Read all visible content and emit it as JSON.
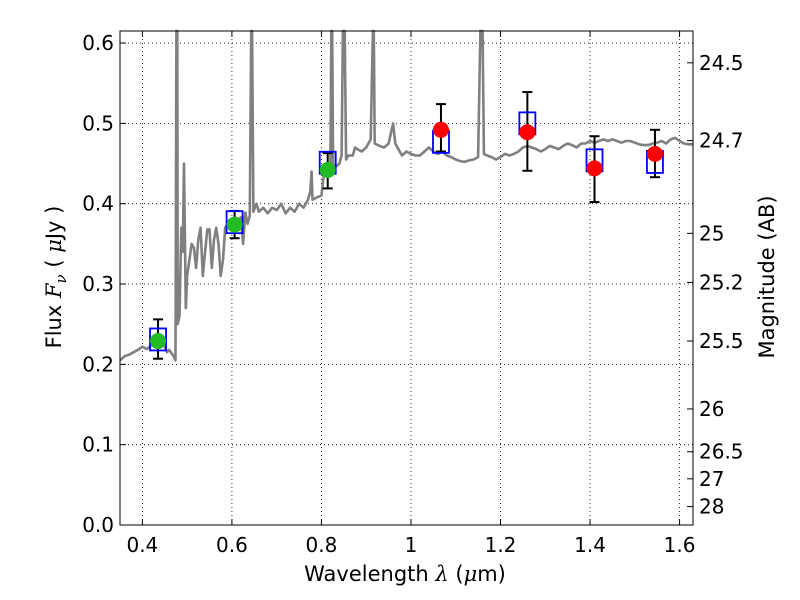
{
  "chart_data": {
    "type": "scatter",
    "xlabel": "Wavelength  λ (μm)",
    "ylabel": "Flux  Fν  ( μJy )",
    "y2label": "Magnitude (AB)",
    "xlim": [
      0.35,
      1.63
    ],
    "ylim": [
      0.0,
      0.615
    ],
    "grid": true,
    "x_ticks": [
      0.4,
      0.6,
      0.8,
      1.0,
      1.2,
      1.4,
      1.6
    ],
    "x_tick_labels": [
      "0.4",
      "0.6",
      "0.8",
      "1",
      "1.2",
      "1.4",
      "1.6"
    ],
    "y_ticks": [
      0.0,
      0.1,
      0.2,
      0.3,
      0.4,
      0.5,
      0.6
    ],
    "y_tick_labels": [
      "0.0",
      "0.1",
      "0.2",
      "0.3",
      "0.4",
      "0.5",
      "0.6"
    ],
    "y2_ticks": [
      {
        "label": "24.5",
        "flux": 0.5754
      },
      {
        "label": "24.7",
        "flux": 0.4786
      },
      {
        "label": "25",
        "flux": 0.3631
      },
      {
        "label": "25.2",
        "flux": 0.302
      },
      {
        "label": "25.5",
        "flux": 0.2291
      },
      {
        "label": "26",
        "flux": 0.1445
      },
      {
        "label": "26.5",
        "flux": 0.0912
      },
      {
        "label": "27",
        "flux": 0.0575
      },
      {
        "label": "28",
        "flux": 0.0229
      }
    ],
    "series": [
      {
        "name": "",
        "kind": "observed-optical",
        "color": "#22bb22",
        "points": [
          {
            "x": 0.435,
            "y": 0.229,
            "err": [
              0.207,
              0.256
            ]
          },
          {
            "x": 0.606,
            "y": 0.374,
            "err": [
              0.357,
              0.391
            ]
          },
          {
            "x": 0.814,
            "y": 0.442,
            "err": [
              0.419,
              0.463
            ]
          }
        ]
      },
      {
        "name": "",
        "kind": "observed-near-infrared",
        "color": "#ff0000",
        "points": [
          {
            "x": 1.067,
            "y": 0.492,
            "err": [
              0.465,
              0.524
            ]
          },
          {
            "x": 1.26,
            "y": 0.489,
            "err": [
              0.441,
              0.539
            ]
          },
          {
            "x": 1.41,
            "y": 0.444,
            "err": [
              0.402,
              0.484
            ]
          },
          {
            "x": 1.545,
            "y": 0.462,
            "err": [
              0.433,
              0.492
            ]
          }
        ]
      },
      {
        "name": "",
        "kind": "model-photometry",
        "color": "#0000ff",
        "points": [
          {
            "x": 0.435,
            "y": 0.231
          },
          {
            "x": 0.606,
            "y": 0.377
          },
          {
            "x": 0.814,
            "y": 0.451
          },
          {
            "x": 1.067,
            "y": 0.477
          },
          {
            "x": 1.26,
            "y": 0.5
          },
          {
            "x": 1.41,
            "y": 0.454
          },
          {
            "x": 1.545,
            "y": 0.452
          }
        ]
      },
      {
        "name": "",
        "kind": "model-spectrum",
        "color": "#808080",
        "points": [
          [
            0.35,
            0.205
          ],
          [
            0.36,
            0.21
          ],
          [
            0.37,
            0.212
          ],
          [
            0.38,
            0.215
          ],
          [
            0.39,
            0.218
          ],
          [
            0.4,
            0.222
          ],
          [
            0.41,
            0.219
          ],
          [
            0.42,
            0.224
          ],
          [
            0.43,
            0.222
          ],
          [
            0.44,
            0.226
          ],
          [
            0.45,
            0.222
          ],
          [
            0.455,
            0.215
          ],
          [
            0.46,
            0.218
          ],
          [
            0.465,
            0.214
          ],
          [
            0.47,
            0.21
          ],
          [
            0.474,
            0.205
          ],
          [
            0.476,
            0.62
          ],
          [
            0.478,
            0.62
          ],
          [
            0.479,
            0.25
          ],
          [
            0.483,
            0.26
          ],
          [
            0.487,
            0.37
          ],
          [
            0.49,
            0.34
          ],
          [
            0.493,
            0.45
          ],
          [
            0.497,
            0.27
          ],
          [
            0.5,
            0.31
          ],
          [
            0.505,
            0.33
          ],
          [
            0.51,
            0.35
          ],
          [
            0.515,
            0.345
          ],
          [
            0.52,
            0.32
          ],
          [
            0.525,
            0.355
          ],
          [
            0.53,
            0.37
          ],
          [
            0.535,
            0.31
          ],
          [
            0.54,
            0.34
          ],
          [
            0.545,
            0.368
          ],
          [
            0.55,
            0.368
          ],
          [
            0.555,
            0.32
          ],
          [
            0.56,
            0.355
          ],
          [
            0.565,
            0.37
          ],
          [
            0.57,
            0.35
          ],
          [
            0.575,
            0.31
          ],
          [
            0.58,
            0.33
          ],
          [
            0.585,
            0.37
          ],
          [
            0.59,
            0.375
          ],
          [
            0.6,
            0.373
          ],
          [
            0.61,
            0.378
          ],
          [
            0.62,
            0.383
          ],
          [
            0.625,
            0.35
          ],
          [
            0.63,
            0.389
          ],
          [
            0.635,
            0.375
          ],
          [
            0.64,
            0.385
          ],
          [
            0.643,
            0.62
          ],
          [
            0.645,
            0.62
          ],
          [
            0.648,
            0.39
          ],
          [
            0.655,
            0.4
          ],
          [
            0.66,
            0.39
          ],
          [
            0.67,
            0.395
          ],
          [
            0.68,
            0.388
          ],
          [
            0.69,
            0.395
          ],
          [
            0.7,
            0.392
          ],
          [
            0.71,
            0.4
          ],
          [
            0.72,
            0.388
          ],
          [
            0.73,
            0.395
          ],
          [
            0.74,
            0.39
          ],
          [
            0.75,
            0.4
          ],
          [
            0.76,
            0.395
          ],
          [
            0.77,
            0.405
          ],
          [
            0.775,
            0.415
          ],
          [
            0.778,
            0.44
          ],
          [
            0.78,
            0.405
          ],
          [
            0.79,
            0.408
          ],
          [
            0.8,
            0.41
          ],
          [
            0.805,
            0.435
          ],
          [
            0.81,
            0.45
          ],
          [
            0.815,
            0.45
          ],
          [
            0.82,
            0.445
          ],
          [
            0.822,
            0.62
          ],
          [
            0.824,
            0.62
          ],
          [
            0.826,
            0.45
          ],
          [
            0.83,
            0.445
          ],
          [
            0.84,
            0.45
          ],
          [
            0.845,
            0.46
          ],
          [
            0.848,
            0.62
          ],
          [
            0.852,
            0.62
          ],
          [
            0.855,
            0.455
          ],
          [
            0.86,
            0.46
          ],
          [
            0.87,
            0.46
          ],
          [
            0.875,
            0.47
          ],
          [
            0.88,
            0.468
          ],
          [
            0.89,
            0.465
          ],
          [
            0.9,
            0.47
          ],
          [
            0.91,
            0.48
          ],
          [
            0.915,
            0.62
          ],
          [
            0.917,
            0.62
          ],
          [
            0.919,
            0.475
          ],
          [
            0.93,
            0.472
          ],
          [
            0.94,
            0.47
          ],
          [
            0.95,
            0.475
          ],
          [
            0.96,
            0.5
          ],
          [
            0.965,
            0.475
          ],
          [
            0.97,
            0.47
          ],
          [
            0.98,
            0.46
          ],
          [
            0.99,
            0.465
          ],
          [
            1.0,
            0.462
          ],
          [
            1.01,
            0.46
          ],
          [
            1.02,
            0.46
          ],
          [
            1.03,
            0.465
          ],
          [
            1.04,
            0.47
          ],
          [
            1.05,
            0.465
          ],
          [
            1.06,
            0.462
          ],
          [
            1.07,
            0.465
          ],
          [
            1.08,
            0.46
          ],
          [
            1.09,
            0.458
          ],
          [
            1.1,
            0.455
          ],
          [
            1.11,
            0.453
          ],
          [
            1.12,
            0.452
          ],
          [
            1.13,
            0.454
          ],
          [
            1.14,
            0.455
          ],
          [
            1.15,
            0.458
          ],
          [
            1.155,
            0.62
          ],
          [
            1.16,
            0.62
          ],
          [
            1.163,
            0.462
          ],
          [
            1.17,
            0.46
          ],
          [
            1.18,
            0.458
          ],
          [
            1.19,
            0.455
          ],
          [
            1.2,
            0.458
          ],
          [
            1.21,
            0.462
          ],
          [
            1.22,
            0.46
          ],
          [
            1.23,
            0.462
          ],
          [
            1.24,
            0.465
          ],
          [
            1.25,
            0.47
          ],
          [
            1.26,
            0.472
          ],
          [
            1.27,
            0.47
          ],
          [
            1.28,
            0.468
          ],
          [
            1.29,
            0.465
          ],
          [
            1.3,
            0.468
          ],
          [
            1.31,
            0.472
          ],
          [
            1.32,
            0.47
          ],
          [
            1.33,
            0.468
          ],
          [
            1.34,
            0.472
          ],
          [
            1.35,
            0.475
          ],
          [
            1.36,
            0.473
          ],
          [
            1.37,
            0.47
          ],
          [
            1.38,
            0.475
          ],
          [
            1.39,
            0.475
          ],
          [
            1.4,
            0.478
          ],
          [
            1.41,
            0.476
          ],
          [
            1.42,
            0.478
          ],
          [
            1.43,
            0.48
          ],
          [
            1.44,
            0.478
          ],
          [
            1.45,
            0.48
          ],
          [
            1.46,
            0.478
          ],
          [
            1.47,
            0.476
          ],
          [
            1.48,
            0.478
          ],
          [
            1.49,
            0.478
          ],
          [
            1.5,
            0.476
          ],
          [
            1.51,
            0.474
          ],
          [
            1.52,
            0.473
          ],
          [
            1.53,
            0.473
          ],
          [
            1.54,
            0.475
          ],
          [
            1.55,
            0.476
          ],
          [
            1.56,
            0.478
          ],
          [
            1.57,
            0.475
          ],
          [
            1.58,
            0.48
          ],
          [
            1.59,
            0.482
          ],
          [
            1.6,
            0.478
          ],
          [
            1.61,
            0.475
          ],
          [
            1.62,
            0.474
          ],
          [
            1.63,
            0.474
          ]
        ]
      }
    ]
  }
}
